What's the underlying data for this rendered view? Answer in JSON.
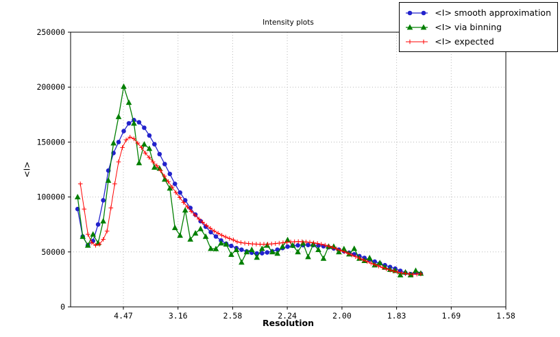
{
  "figure": {
    "title": "Intensity plots",
    "xlabel": "Resolution",
    "ylabel": "<I>"
  },
  "colors": {
    "background": "#ffffff",
    "axes_frame": "#000000",
    "grid": "#b8b8b8",
    "series_smooth": "#2222cc",
    "series_binning": "#007f00",
    "series_expected": "#ff0000"
  },
  "legend": {
    "position": "top-right",
    "entries": [
      "<I> smooth approximation",
      "<I> via binning",
      "<I> expected"
    ]
  },
  "chart_data": {
    "type": "line",
    "title": "Intensity plots",
    "xlabel": "Resolution",
    "ylabel": "<I>",
    "x_axis_scale": "linear in 1/d^2, tick labels show resolution d",
    "xlim": [
      0.0017,
      0.4
    ],
    "ylim": [
      0,
      250000
    ],
    "grid": "dotted",
    "x_ticks": [
      {
        "pos": 0.05,
        "label": "4.47"
      },
      {
        "pos": 0.1,
        "label": "3.16"
      },
      {
        "pos": 0.15,
        "label": "2.58"
      },
      {
        "pos": 0.2,
        "label": "2.24"
      },
      {
        "pos": 0.25,
        "label": "2.00"
      },
      {
        "pos": 0.3,
        "label": "1.83"
      },
      {
        "pos": 0.35,
        "label": "1.69"
      },
      {
        "pos": 0.4,
        "label": "1.58"
      }
    ],
    "y_ticks": [
      {
        "pos": 0,
        "label": "0"
      },
      {
        "pos": 50000,
        "label": "50000"
      },
      {
        "pos": 100000,
        "label": "100000"
      },
      {
        "pos": 150000,
        "label": "150000"
      },
      {
        "pos": 200000,
        "label": "200000"
      },
      {
        "pos": 250000,
        "label": "250000"
      }
    ],
    "series": [
      {
        "name": "<I> smooth approximation",
        "color": "#2222cc",
        "marker": "circle",
        "line_width": 1.3,
        "x_start": 0.008125,
        "x_step": 0.0046875,
        "values": [
          89000,
          64000,
          56000,
          60000,
          75000,
          97000,
          124000,
          140000,
          150000,
          160000,
          167000,
          170000,
          168000,
          163000,
          156000,
          148000,
          139000,
          130000,
          121000,
          112000,
          104000,
          97000,
          90000,
          84000,
          78000,
          73000,
          68000,
          64000,
          60500,
          57500,
          55500,
          53500,
          52000,
          50500,
          49300,
          48600,
          48800,
          49500,
          50600,
          52000,
          53500,
          54800,
          55600,
          56000,
          56200,
          56300,
          56200,
          55800,
          55200,
          54300,
          53200,
          52000,
          50700,
          49300,
          47800,
          46200,
          44600,
          42900,
          41200,
          39500,
          37900,
          36300,
          34800,
          32800,
          30900,
          29800,
          31200,
          30300
        ]
      },
      {
        "name": "<I> via binning",
        "color": "#007f00",
        "marker": "triangle",
        "line_width": 1.3,
        "x_start": 0.008125,
        "x_step": 0.0046875,
        "values": [
          100000,
          64000,
          56000,
          66000,
          58000,
          78000,
          115000,
          149000,
          173000,
          200500,
          186000,
          167000,
          131000,
          148000,
          144000,
          127000,
          126000,
          116000,
          108000,
          72000,
          65000,
          88000,
          61500,
          67000,
          71000,
          64000,
          53000,
          52800,
          58000,
          57000,
          47600,
          52000,
          40500,
          50000,
          52000,
          45000,
          53000,
          56000,
          50000,
          48600,
          55000,
          61000,
          56000,
          50000,
          58000,
          45500,
          57000,
          52000,
          44000,
          55000,
          54900,
          50000,
          52800,
          48000,
          53000,
          44000,
          42000,
          44500,
          38000,
          40000,
          36000,
          34000,
          33000,
          29000,
          31500,
          29000,
          33000,
          30500
        ]
      },
      {
        "name": "<I> expected",
        "color": "#ff0000",
        "marker": "plus",
        "line_width": 1.0,
        "x_start": 0.0106,
        "x_step": 0.0035,
        "values": [
          112000,
          89000,
          66000,
          58500,
          56000,
          57000,
          61500,
          69000,
          90000,
          112000,
          132000,
          145000,
          152000,
          154500,
          153000,
          149000,
          145000,
          140000,
          136000,
          132000,
          128500,
          124000,
          119000,
          114000,
          109000,
          104000,
          99500,
          95000,
          91000,
          87000,
          83500,
          80000,
          77000,
          74000,
          71500,
          69000,
          67000,
          65200,
          63600,
          62200,
          61000,
          59200,
          58500,
          58000,
          57600,
          57300,
          57100,
          57000,
          57000,
          57100,
          57300,
          57600,
          58000,
          58400,
          58800,
          59100,
          59300,
          59400,
          59300,
          59100,
          58800,
          58300,
          57700,
          57000,
          56100,
          55100,
          54000,
          52800,
          51500,
          50100,
          48700,
          47200,
          45700,
          44200,
          42700,
          41200,
          39800,
          38400,
          37100,
          35800,
          34600,
          33500,
          32500,
          31600,
          30900,
          30300,
          29900,
          29700,
          29800,
          30000
        ]
      }
    ]
  }
}
